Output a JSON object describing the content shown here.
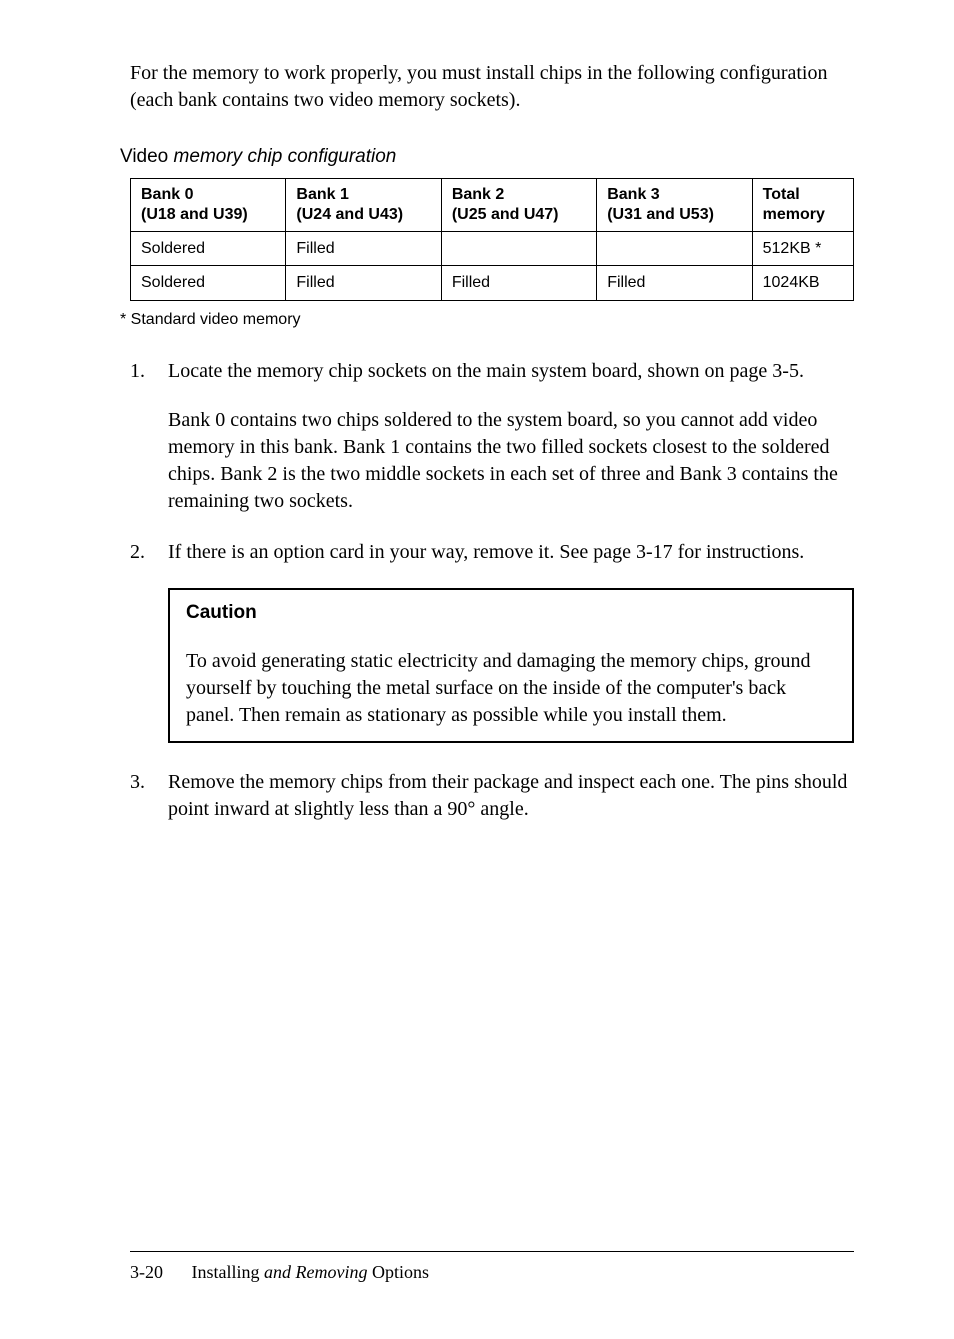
{
  "intro": "For the memory to work properly, you must install chips in the following configuration (each bank contains two video memory sockets).",
  "tableCaption": {
    "first": "Video",
    "rest": " memory chip configuration"
  },
  "table": {
    "headers": {
      "b0a": "Bank 0",
      "b0b": "(U18 and U39)",
      "b1a": "Bank 1",
      "b1b": "(U24 and U43)",
      "b2a": "Bank 2",
      "b2b": "(U25 and U47)",
      "b3a": "Bank 3",
      "b3b": "(U31 and U53)",
      "totala": "Total",
      "totalb": "memory"
    },
    "row1": {
      "c0": "Soldered",
      "c1": "Filled",
      "c2": "",
      "c3": "",
      "c4": "512KB *"
    },
    "row2": {
      "c0": "Soldered",
      "c1": "Filled",
      "c2": "Filled",
      "c3": "Filled",
      "c4": "1024KB"
    }
  },
  "footnote": "*   Standard video memory",
  "steps": {
    "s1p1": "Locate the memory chip sockets on the main system board, shown on page 3-5.",
    "s1p2": "Bank 0 contains two chips soldered to the system board, so you cannot add video memory in this bank. Bank 1 contains the two filled sockets closest to the soldered chips. Bank 2 is the two middle sockets in each set of three and Bank 3 contains the remaining two sockets.",
    "s2p1": "If there is an option card in your way, remove it. See page 3-17 for instructions.",
    "cautionTitle": "Caution",
    "cautionText": "To avoid generating static electricity and damaging the memory chips, ground yourself by touching the metal surface on the inside of the computer's back panel. Then remain as stationary as possible while you install them.",
    "s3p1": "Remove the memory chips from their package and inspect each one. The pins should point inward at slightly less than a 90° angle."
  },
  "footer": {
    "page": "3-20",
    "titleW1": "Installing ",
    "titleItal": "and Removing",
    "titleW2": " Options"
  }
}
